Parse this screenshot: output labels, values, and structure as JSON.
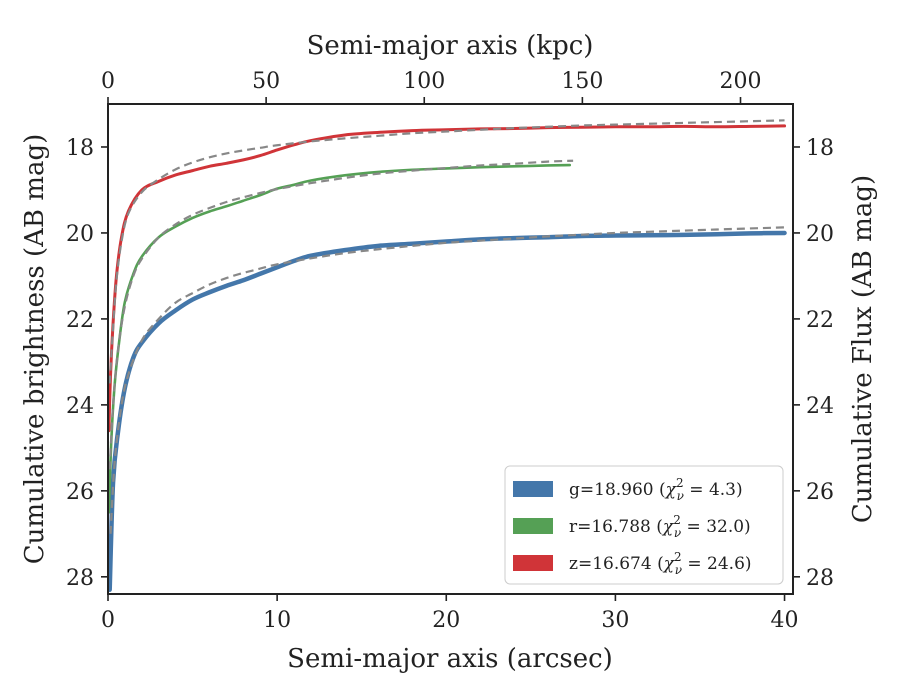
{
  "chart_data": {
    "type": "line",
    "x": {
      "label": "Semi-major axis (arcsec)",
      "lim": [
        0,
        40.5
      ],
      "ticks": [
        0,
        10,
        20,
        30,
        40
      ]
    },
    "x_top": {
      "label": "Semi-major axis (kpc)",
      "lim": [
        0,
        216.6
      ],
      "ticks": [
        0,
        50,
        100,
        150,
        200
      ]
    },
    "y_left": {
      "label": "Cumulative brightness (AB mag)",
      "lim": [
        28.4,
        17.0
      ],
      "inverted": true,
      "ticks": [
        18,
        20,
        22,
        24,
        26,
        28
      ]
    },
    "y_right": {
      "label": "Cumulative Flux (AB mag)",
      "ticks": [
        18,
        20,
        22,
        24,
        26,
        28
      ]
    },
    "legend": {
      "position": "lower-right",
      "entries": [
        {
          "band": "g",
          "text": "g=18.960",
          "chi_sub": "ν",
          "chi_val": "4.3",
          "color": "#4477aa"
        },
        {
          "band": "r",
          "text": "r=16.788",
          "chi_sub": "ν",
          "chi_val": "32.0",
          "color": "#55a055"
        },
        {
          "band": "z",
          "text": "z=16.674",
          "chi_sub": "ν",
          "chi_val": "24.6",
          "color": "#d03438"
        }
      ]
    },
    "series": [
      {
        "name": "g=18.960",
        "color": "#4477aa",
        "width": 4.5,
        "points": [
          [
            0.1,
            28.3
          ],
          [
            0.3,
            25.8
          ],
          [
            0.6,
            24.6
          ],
          [
            1,
            23.6
          ],
          [
            1.5,
            22.9
          ],
          [
            2,
            22.55
          ],
          [
            3,
            22.1
          ],
          [
            4,
            21.8
          ],
          [
            5,
            21.55
          ],
          [
            6,
            21.38
          ],
          [
            7,
            21.23
          ],
          [
            8,
            21.1
          ],
          [
            9,
            20.95
          ],
          [
            10,
            20.8
          ],
          [
            11,
            20.65
          ],
          [
            12,
            20.53
          ],
          [
            14,
            20.4
          ],
          [
            16,
            20.3
          ],
          [
            18,
            20.25
          ],
          [
            20,
            20.2
          ],
          [
            22,
            20.15
          ],
          [
            24,
            20.12
          ],
          [
            26,
            20.1
          ],
          [
            28,
            20.07
          ],
          [
            30,
            20.06
          ],
          [
            33,
            20.05
          ],
          [
            36,
            20.03
          ],
          [
            38,
            20.01
          ],
          [
            40,
            20.0
          ]
        ]
      },
      {
        "name": "r=16.788",
        "color": "#55a055",
        "width": 2.6,
        "points": [
          [
            0.05,
            26.5
          ],
          [
            0.2,
            24.8
          ],
          [
            0.4,
            23.5
          ],
          [
            0.7,
            22.4
          ],
          [
            1,
            21.6
          ],
          [
            1.5,
            20.95
          ],
          [
            2,
            20.55
          ],
          [
            3,
            20.1
          ],
          [
            4,
            19.85
          ],
          [
            5,
            19.65
          ],
          [
            6,
            19.5
          ],
          [
            7,
            19.38
          ],
          [
            8,
            19.25
          ],
          [
            9,
            19.12
          ],
          [
            10,
            18.97
          ],
          [
            11,
            18.88
          ],
          [
            12,
            18.78
          ],
          [
            14,
            18.66
          ],
          [
            16,
            18.58
          ],
          [
            18,
            18.53
          ],
          [
            20,
            18.5
          ],
          [
            22,
            18.47
          ],
          [
            24,
            18.45
          ],
          [
            26,
            18.43
          ],
          [
            27.3,
            18.42
          ]
        ]
      },
      {
        "name": "z=16.674",
        "color": "#d03438",
        "width": 3.0,
        "points": [
          [
            0.05,
            24.6
          ],
          [
            0.15,
            23.3
          ],
          [
            0.3,
            22.1
          ],
          [
            0.5,
            21.0
          ],
          [
            0.8,
            20.1
          ],
          [
            1.2,
            19.5
          ],
          [
            2,
            19.0
          ],
          [
            3,
            18.8
          ],
          [
            4,
            18.65
          ],
          [
            5,
            18.55
          ],
          [
            6,
            18.45
          ],
          [
            7,
            18.38
          ],
          [
            8,
            18.3
          ],
          [
            9,
            18.2
          ],
          [
            10,
            18.07
          ],
          [
            11,
            17.95
          ],
          [
            12,
            17.85
          ],
          [
            14,
            17.72
          ],
          [
            16,
            17.66
          ],
          [
            18,
            17.62
          ],
          [
            20,
            17.6
          ],
          [
            22,
            17.58
          ],
          [
            24,
            17.57
          ],
          [
            26,
            17.55
          ],
          [
            28,
            17.54
          ],
          [
            30,
            17.53
          ],
          [
            32,
            17.53
          ],
          [
            34,
            17.52
          ],
          [
            36,
            17.53
          ],
          [
            38,
            17.52
          ],
          [
            40,
            17.51
          ]
        ]
      }
    ],
    "fits": [
      {
        "band": "g",
        "style": "dashed",
        "color": "#888888",
        "points": [
          [
            0.15,
            27.0
          ],
          [
            0.4,
            25.3
          ],
          [
            0.8,
            24.0
          ],
          [
            1.2,
            23.3
          ],
          [
            2,
            22.5
          ],
          [
            3,
            22.0
          ],
          [
            4,
            21.62
          ],
          [
            5,
            21.4
          ],
          [
            6,
            21.2
          ],
          [
            7,
            21.05
          ],
          [
            8,
            20.93
          ],
          [
            9,
            20.83
          ],
          [
            10,
            20.73
          ],
          [
            12,
            20.59
          ],
          [
            14,
            20.47
          ],
          [
            16,
            20.38
          ],
          [
            18,
            20.3
          ],
          [
            20,
            20.23
          ],
          [
            22,
            20.18
          ],
          [
            24,
            20.13
          ],
          [
            26,
            20.08
          ],
          [
            28,
            20.04
          ],
          [
            30,
            20.0
          ],
          [
            33,
            19.96
          ],
          [
            36,
            19.92
          ],
          [
            40,
            19.87
          ]
        ]
      },
      {
        "band": "r",
        "style": "dashed",
        "color": "#888888",
        "points": [
          [
            0.1,
            25.5
          ],
          [
            0.3,
            24.0
          ],
          [
            0.6,
            22.7
          ],
          [
            1,
            21.7
          ],
          [
            1.5,
            21.0
          ],
          [
            2,
            20.6
          ],
          [
            3,
            20.1
          ],
          [
            4,
            19.8
          ],
          [
            5,
            19.58
          ],
          [
            6,
            19.42
          ],
          [
            7,
            19.28
          ],
          [
            8,
            19.17
          ],
          [
            9,
            19.07
          ],
          [
            10,
            18.98
          ],
          [
            12,
            18.84
          ],
          [
            14,
            18.72
          ],
          [
            16,
            18.62
          ],
          [
            18,
            18.55
          ],
          [
            20,
            18.49
          ],
          [
            22,
            18.43
          ],
          [
            24,
            18.39
          ],
          [
            26,
            18.34
          ],
          [
            27.5,
            18.32
          ]
        ]
      },
      {
        "band": "z",
        "style": "dashed",
        "color": "#888888",
        "points": [
          [
            0.1,
            23.5
          ],
          [
            0.3,
            22.2
          ],
          [
            0.5,
            21.1
          ],
          [
            0.8,
            20.2
          ],
          [
            1.2,
            19.55
          ],
          [
            2,
            19.05
          ],
          [
            3,
            18.75
          ],
          [
            4,
            18.52
          ],
          [
            5,
            18.36
          ],
          [
            6,
            18.24
          ],
          [
            7,
            18.15
          ],
          [
            8,
            18.08
          ],
          [
            9,
            18.02
          ],
          [
            10,
            17.96
          ],
          [
            12,
            17.87
          ],
          [
            14,
            17.8
          ],
          [
            16,
            17.74
          ],
          [
            18,
            17.68
          ],
          [
            20,
            17.64
          ],
          [
            22,
            17.6
          ],
          [
            24,
            17.56
          ],
          [
            26,
            17.53
          ],
          [
            28,
            17.5
          ],
          [
            30,
            17.48
          ],
          [
            33,
            17.45
          ],
          [
            36,
            17.42
          ],
          [
            40,
            17.38
          ]
        ]
      }
    ]
  }
}
